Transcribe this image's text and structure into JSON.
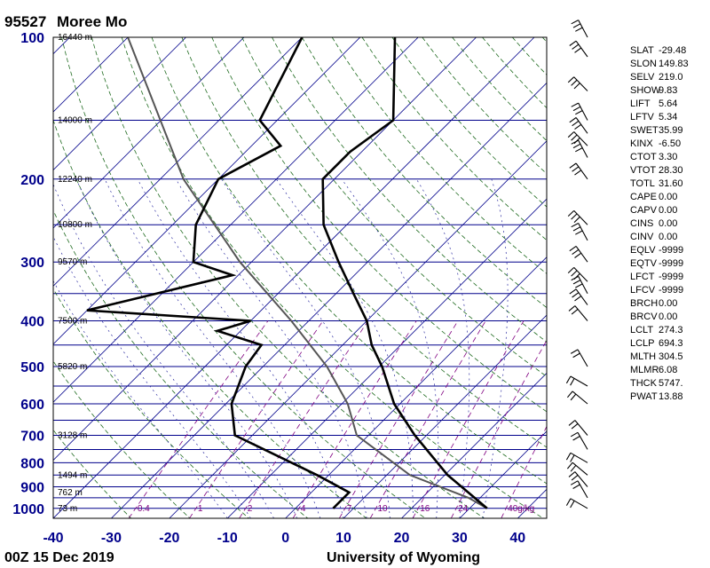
{
  "title": {
    "station": "95527",
    "name": "Moree Mo"
  },
  "footer": {
    "time": "00Z 15 Dec 2019",
    "source": "University of Wyoming"
  },
  "chart_data": {
    "type": "skew-t",
    "xlim": [
      -40,
      45
    ],
    "pressure_levels": [
      100,
      200,
      300,
      400,
      500,
      600,
      700,
      800,
      900,
      1000
    ],
    "temperature_ticks": [
      -40,
      -30,
      -20,
      -10,
      0,
      10,
      20,
      30,
      40
    ],
    "height_labels": [
      {
        "p": 100,
        "label": "16440 m"
      },
      {
        "p": 150,
        "label": "14000 m"
      },
      {
        "p": 200,
        "label": "12240 m"
      },
      {
        "p": 250,
        "label": "10800 m"
      },
      {
        "p": 300,
        "label": "9570 m"
      },
      {
        "p": 400,
        "label": "7500 m"
      },
      {
        "p": 500,
        "label": "5820 m"
      },
      {
        "p": 700,
        "label": "3128 m"
      },
      {
        "p": 850,
        "label": "1494 m"
      },
      {
        "p": 925,
        "label": "762 m"
      },
      {
        "p": 1000,
        "label": "73 m"
      }
    ],
    "mixing_ratio_labels": [
      {
        "w": "0.4",
        "p": 1000
      },
      {
        "w": "1",
        "p": 1000
      },
      {
        "w": "2",
        "p": 1000
      },
      {
        "w": "4",
        "p": 1000
      },
      {
        "w": "7",
        "p": 1000
      },
      {
        "w": "10",
        "p": 1000
      },
      {
        "w": "16",
        "p": 1000
      },
      {
        "w": "24",
        "p": 1000
      },
      {
        "w": "40g/kg",
        "p": 1000
      }
    ],
    "temperature": [
      {
        "p": 1000,
        "t": 33
      },
      {
        "p": 925,
        "t": 27
      },
      {
        "p": 850,
        "t": 20.5
      },
      {
        "p": 700,
        "t": 8
      },
      {
        "p": 600,
        "t": -1
      },
      {
        "p": 500,
        "t": -9.5
      },
      {
        "p": 450,
        "t": -15
      },
      {
        "p": 400,
        "t": -20
      },
      {
        "p": 350,
        "t": -27
      },
      {
        "p": 300,
        "t": -35
      },
      {
        "p": 250,
        "t": -44
      },
      {
        "p": 200,
        "t": -52
      },
      {
        "p": 175,
        "t": -52
      },
      {
        "p": 150,
        "t": -50
      },
      {
        "p": 100,
        "t": -64
      }
    ],
    "dewpoint": [
      {
        "p": 1000,
        "t": 6.5
      },
      {
        "p": 925,
        "t": 6.5
      },
      {
        "p": 850,
        "t": -2
      },
      {
        "p": 700,
        "t": -23
      },
      {
        "p": 600,
        "t": -29
      },
      {
        "p": 500,
        "t": -33
      },
      {
        "p": 450,
        "t": -34
      },
      {
        "p": 420,
        "t": -44
      },
      {
        "p": 400,
        "t": -40
      },
      {
        "p": 380,
        "t": -70
      },
      {
        "p": 320,
        "t": -51
      },
      {
        "p": 300,
        "t": -60
      },
      {
        "p": 250,
        "t": -66
      },
      {
        "p": 200,
        "t": -70
      },
      {
        "p": 170,
        "t": -65
      },
      {
        "p": 150,
        "t": -73
      },
      {
        "p": 100,
        "t": -80
      }
    ],
    "parcel": [
      {
        "p": 1000,
        "t": 33
      },
      {
        "p": 950,
        "t": 28
      },
      {
        "p": 850,
        "t": 14
      },
      {
        "p": 700,
        "t": -2
      },
      {
        "p": 600,
        "t": -9
      },
      {
        "p": 500,
        "t": -19
      },
      {
        "p": 400,
        "t": -33
      },
      {
        "p": 300,
        "t": -52
      },
      {
        "p": 200,
        "t": -76
      },
      {
        "p": 100,
        "t": -110
      }
    ],
    "wind_barb_levels": [
      100,
      110,
      130,
      150,
      160,
      170,
      180,
      200,
      250,
      270,
      300,
      330,
      350,
      370,
      400,
      500,
      550,
      600,
      700,
      750,
      800,
      850,
      900,
      950,
      1000
    ]
  },
  "indices": [
    {
      "key": "SLAT",
      "value": "-29.48"
    },
    {
      "key": "SLON",
      "value": "149.83"
    },
    {
      "key": "SELV",
      "value": "219.0"
    },
    {
      "key": "SHOW",
      "value": "9.83"
    },
    {
      "key": "LIFT",
      "value": "5.64"
    },
    {
      "key": "LFTV",
      "value": "5.34"
    },
    {
      "key": "SWET",
      "value": "35.99"
    },
    {
      "key": "KINX",
      "value": "-6.50"
    },
    {
      "key": "CTOT",
      "value": "3.30"
    },
    {
      "key": "VTOT",
      "value": "28.30"
    },
    {
      "key": "TOTL",
      "value": "31.60"
    },
    {
      "key": "CAPE",
      "value": "0.00"
    },
    {
      "key": "CAPV",
      "value": "0.00"
    },
    {
      "key": "CINS",
      "value": "0.00"
    },
    {
      "key": "CINV",
      "value": "0.00"
    },
    {
      "key": "EQLV",
      "value": "-9999"
    },
    {
      "key": "EQTV",
      "value": "-9999"
    },
    {
      "key": "LFCT",
      "value": "-9999"
    },
    {
      "key": "LFCV",
      "value": "-9999"
    },
    {
      "key": "BRCH",
      "value": "0.00"
    },
    {
      "key": "BRCV",
      "value": "0.00"
    },
    {
      "key": "LCLT",
      "value": "274.3"
    },
    {
      "key": "LCLP",
      "value": "694.3"
    },
    {
      "key": "MLTH",
      "value": "304.5"
    },
    {
      "key": "MLMR",
      "value": "6.08"
    },
    {
      "key": "THCK",
      "value": "5747."
    },
    {
      "key": "PWAT",
      "value": "13.88"
    }
  ],
  "colors": {
    "isobar": "#00008b",
    "isotherm": "#00008b",
    "dry_adiabat": "#1e6a1e",
    "moist_adiabat": "#2a2aa0",
    "mixing_ratio": "#800080",
    "sounding": "#000000",
    "parcel": "#555555"
  }
}
